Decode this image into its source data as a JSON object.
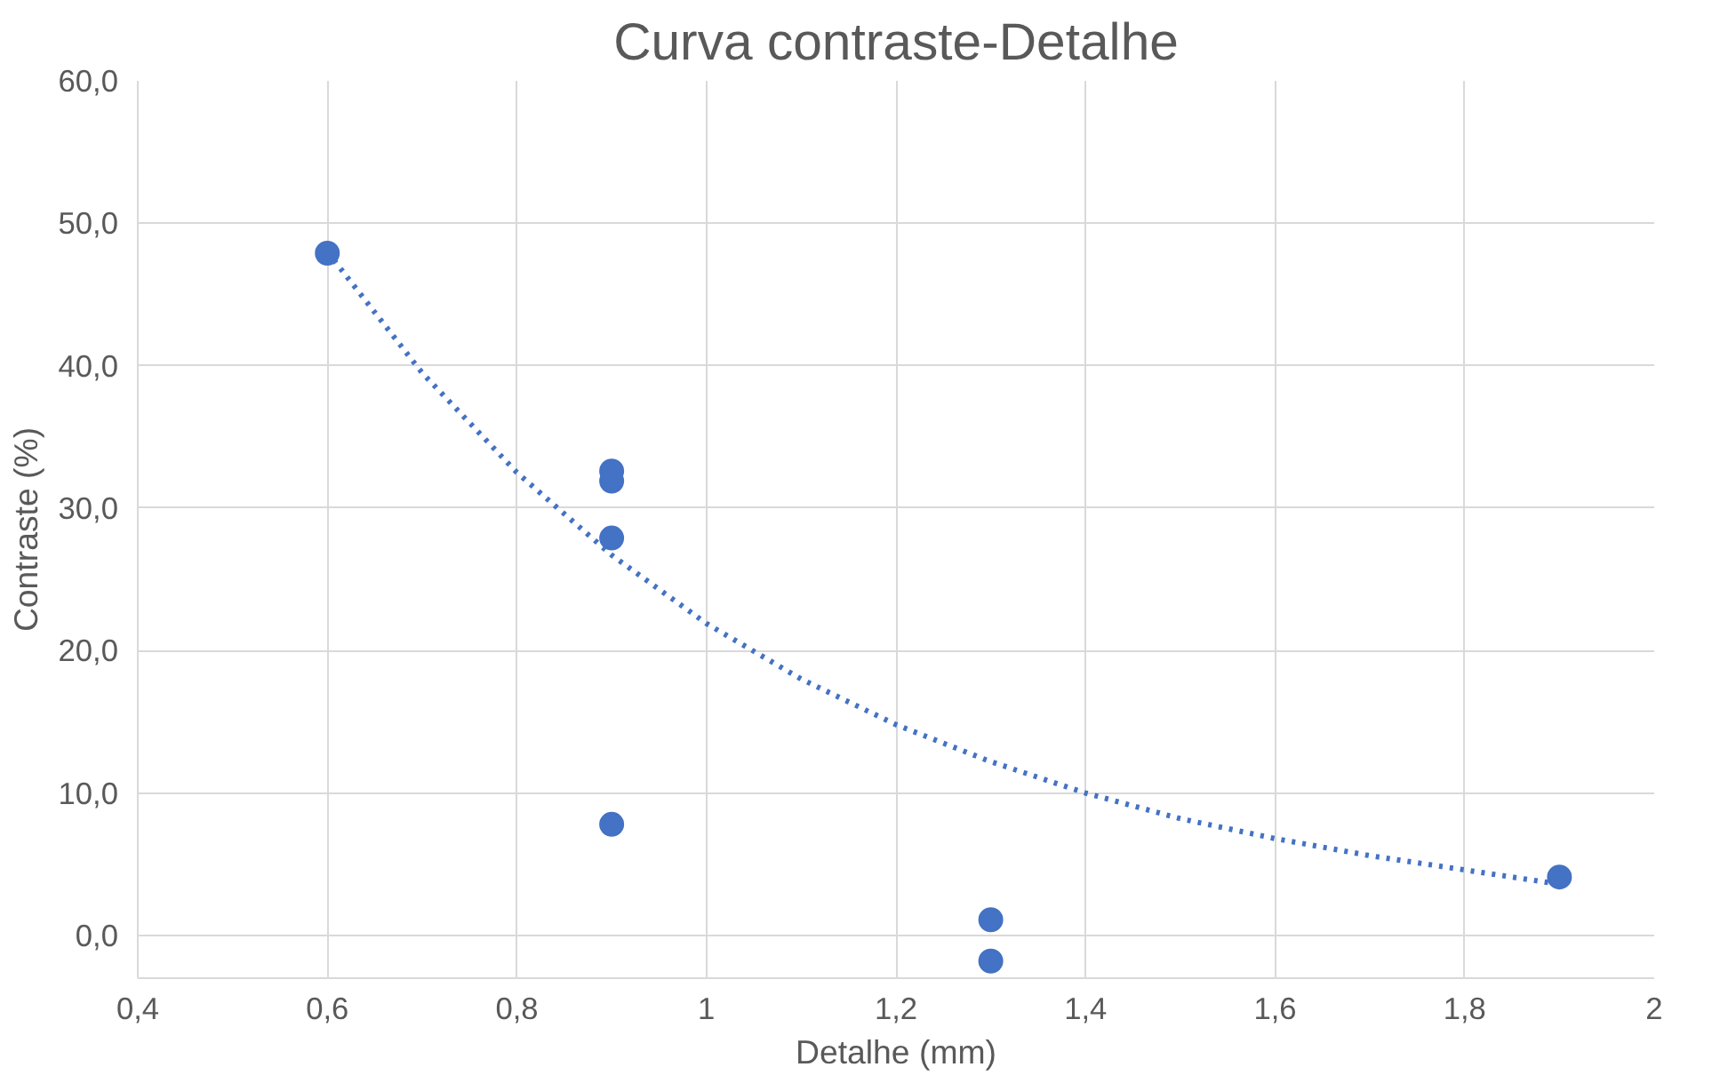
{
  "chart_data": {
    "type": "scatter",
    "title": "Curva contraste-Detalhe",
    "xlabel": "Detalhe (mm)",
    "ylabel": "Contraste (%)",
    "series": [
      {
        "color": "#4472c4",
        "marker": "circle",
        "x": [
          0.6,
          0.9,
          0.9,
          0.9,
          0.9,
          1.3,
          1.3,
          1.9
        ],
        "values": [
          47.9,
          32.6,
          31.9,
          27.9,
          7.8,
          1.1,
          -1.8,
          4.1
        ]
      },
      {
        "type": "line",
        "color": "#4472c4",
        "line_style": "dotted",
        "marker": "none",
        "x": [
          0.6,
          0.7,
          0.8,
          0.9,
          1.0,
          1.1,
          1.2,
          1.3,
          1.4,
          1.5,
          1.6,
          1.7,
          1.8,
          1.9
        ],
        "values": [
          48.0,
          39.5,
          32.5,
          26.7,
          21.9,
          18.0,
          14.8,
          12.2,
          10.0,
          8.2,
          6.8,
          5.6,
          4.6,
          3.6
        ]
      }
    ],
    "xlim": [
      0.4,
      2
    ],
    "xticks": [
      {
        "value": 0.4,
        "label": "0,4"
      },
      {
        "value": 0.6,
        "label": "0,6"
      },
      {
        "value": 0.8,
        "label": "0,8"
      },
      1,
      {
        "value": 1.2,
        "label": "1,2"
      },
      {
        "value": 1.4,
        "label": "1,4"
      },
      {
        "value": 1.6,
        "label": "1,6"
      },
      {
        "value": 1.8,
        "label": "1,8"
      },
      2
    ],
    "ylim": [
      -3,
      60
    ],
    "yticks": [
      {
        "value": 0,
        "label": "0,0"
      },
      {
        "value": 10,
        "label": "10,0"
      },
      {
        "value": 20,
        "label": "20,0"
      },
      {
        "value": 30,
        "label": "30,0"
      },
      {
        "value": 40,
        "label": "40,0"
      },
      {
        "value": 50,
        "label": "50,0"
      },
      {
        "value": 60,
        "label": "60,0"
      }
    ],
    "grid": true
  }
}
